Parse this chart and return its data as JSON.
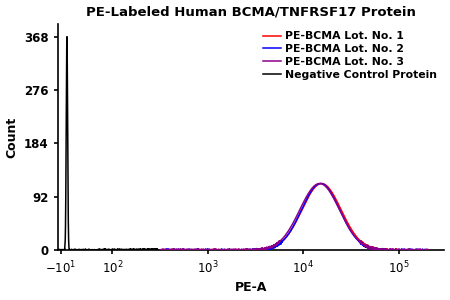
{
  "title": "PE-Labeled Human BCMA/TNFRSF17 Protein",
  "xlabel": "PE-A",
  "ylabel": "Count",
  "yticks": [
    0,
    92,
    184,
    276,
    368
  ],
  "ymax": 390,
  "legend_entries": [
    {
      "label": "Negative Control Protein",
      "color": "#000000"
    },
    {
      "label": "PE-BCMA Lot. No. 1",
      "color": "#ff0000"
    },
    {
      "label": "PE-BCMA Lot. No. 2",
      "color": "#0000ff"
    },
    {
      "label": "PE-BCMA Lot. No. 3",
      "color": "#8b008b"
    }
  ],
  "neg_peak_x": 6.0,
  "neg_peak_y": 368,
  "neg_sigma_lin": 1.8,
  "pe_peak_log": 4.18,
  "pe_sigma_log": 0.2,
  "pe_peak_y": 115,
  "xtick_positions": [
    -10,
    100,
    1000,
    10000,
    100000
  ],
  "xtick_labels": [
    "$-10^1$",
    "$10^2$",
    "$10^3$",
    "$10^4$",
    "$10^5$"
  ],
  "xmin": -18,
  "xmax": 300000,
  "linthresh": 50,
  "linscale": 0.18,
  "background_color": "#ffffff",
  "title_fontsize": 9.5,
  "axis_fontsize": 9,
  "tick_fontsize": 8.5,
  "legend_fontsize": 7.8
}
